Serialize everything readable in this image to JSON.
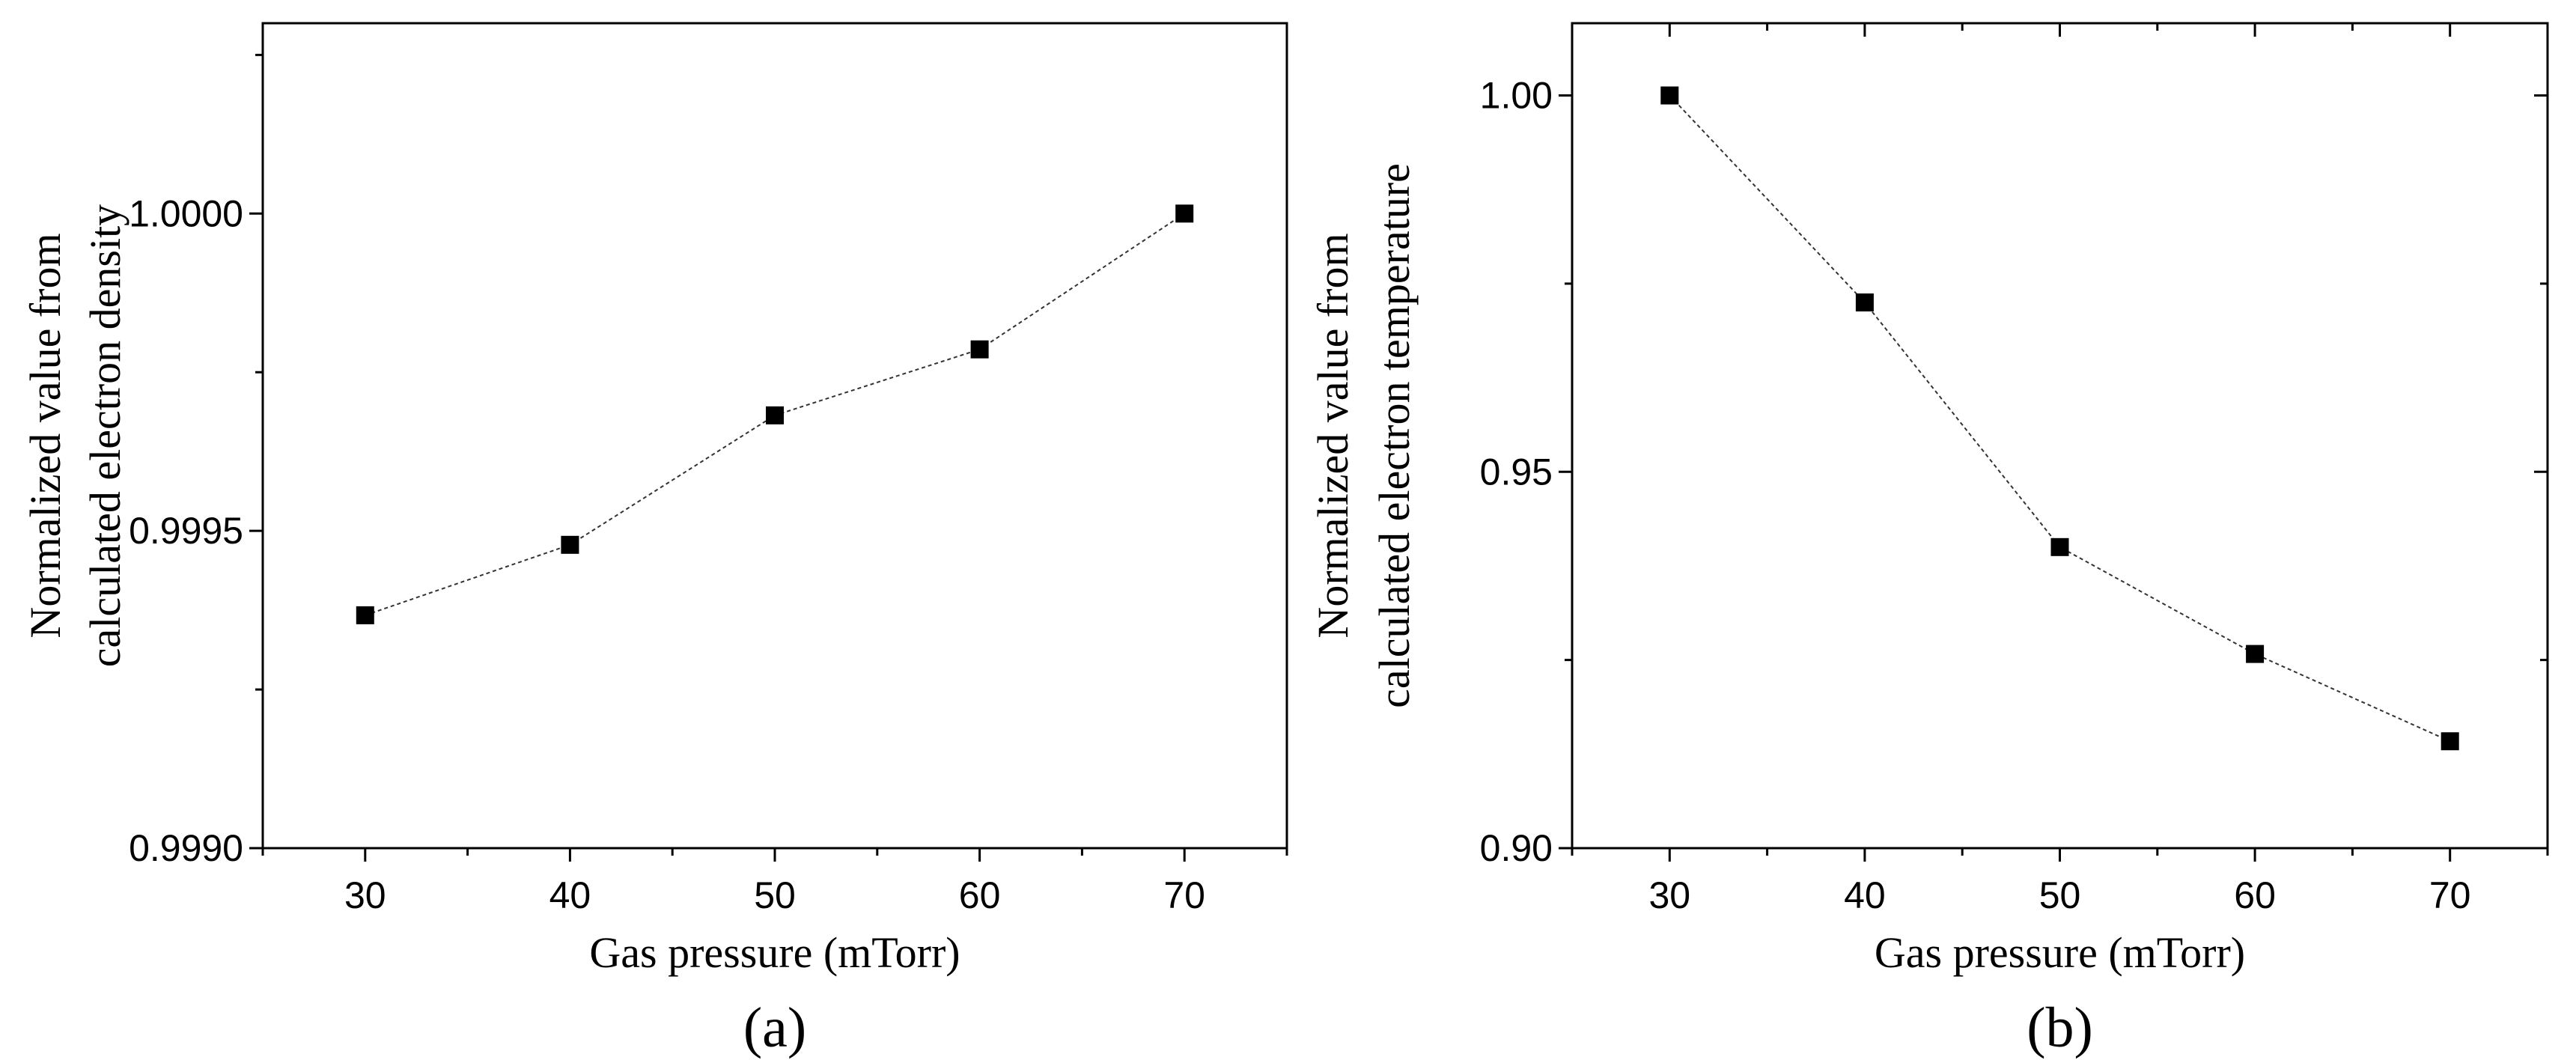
{
  "chart_data": [
    {
      "type": "line",
      "panel_label": "(a)",
      "xlabel": "Gas pressure (mTorr)",
      "ylabel_lines": [
        "Normalized value from",
        "calculated electron density"
      ],
      "x": [
        30,
        40,
        50,
        60,
        70
      ],
      "series": [
        {
          "name": "electron density",
          "values": [
            0.999367,
            0.999478,
            0.999682,
            0.999786,
            1.0
          ],
          "marker": "square",
          "line": "dotted"
        }
      ],
      "xlim": [
        25,
        75
      ],
      "ylim": [
        0.999,
        1.0003
      ],
      "xticks": [
        30,
        40,
        50,
        60,
        70
      ],
      "xtick_labels": [
        "30",
        "40",
        "50",
        "60",
        "70"
      ],
      "yticks": [
        0.999,
        0.9995,
        1.0
      ],
      "ytick_labels": [
        "0.9990",
        "0.9995",
        "1.0000"
      ],
      "yminor_step": 0.00025,
      "grid": false
    },
    {
      "type": "line",
      "panel_label": "(b)",
      "xlabel": "Gas pressure (mTorr)",
      "ylabel_lines": [
        "Normalized value from",
        "calculated electron temperature"
      ],
      "x": [
        30,
        40,
        50,
        60,
        70
      ],
      "series": [
        {
          "name": "electron temperature",
          "values": [
            1.0,
            0.9725,
            0.94,
            0.9258,
            0.9142
          ],
          "marker": "square",
          "line": "dotted"
        }
      ],
      "xlim": [
        25,
        75
      ],
      "ylim": [
        0.9,
        1.0096
      ],
      "xticks": [
        30,
        40,
        50,
        60,
        70
      ],
      "xtick_labels": [
        "30",
        "40",
        "50",
        "60",
        "70"
      ],
      "yticks": [
        0.9,
        0.95,
        1.0
      ],
      "ytick_labels": [
        "0.90",
        "0.95",
        "1.00"
      ],
      "yminor_step": 0.025,
      "grid": false
    }
  ]
}
